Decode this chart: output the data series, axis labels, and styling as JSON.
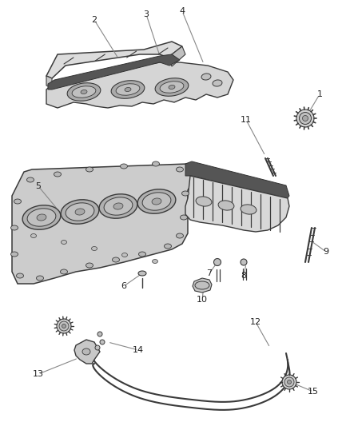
{
  "bg_color": "#ffffff",
  "line_color": "#3a3a3a",
  "label_color": "#222222",
  "callout_line_color": "#888888",
  "fig_w": 4.38,
  "fig_h": 5.33,
  "dpi": 100,
  "callouts": [
    [
      "1",
      [
        400,
        118
      ],
      [
        382,
        148
      ]
    ],
    [
      "2",
      [
        118,
        25
      ],
      [
        148,
        73
      ]
    ],
    [
      "3",
      [
        183,
        18
      ],
      [
        200,
        70
      ]
    ],
    [
      "4",
      [
        228,
        14
      ],
      [
        255,
        80
      ]
    ],
    [
      "5",
      [
        48,
        233
      ],
      [
        72,
        262
      ]
    ],
    [
      "6",
      [
        155,
        358
      ],
      [
        178,
        342
      ]
    ],
    [
      "7",
      [
        262,
        342
      ],
      [
        272,
        328
      ]
    ],
    [
      "8",
      [
        305,
        345
      ],
      [
        308,
        330
      ]
    ],
    [
      "9",
      [
        408,
        315
      ],
      [
        390,
        302
      ]
    ],
    [
      "10",
      [
        253,
        375
      ],
      [
        255,
        358
      ]
    ],
    [
      "11",
      [
        308,
        150
      ],
      [
        332,
        195
      ]
    ],
    [
      "12",
      [
        320,
        403
      ],
      [
        338,
        435
      ]
    ],
    [
      "13",
      [
        48,
        468
      ],
      [
        98,
        448
      ]
    ],
    [
      "14",
      [
        173,
        438
      ],
      [
        135,
        428
      ]
    ],
    [
      "15",
      [
        392,
        490
      ],
      [
        368,
        480
      ]
    ]
  ]
}
